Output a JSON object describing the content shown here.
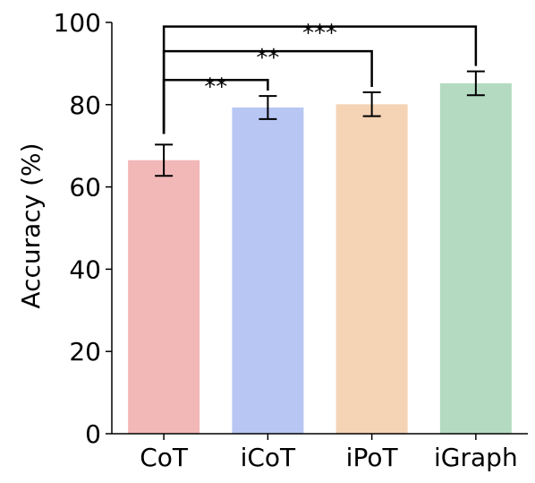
{
  "chart_data": {
    "type": "bar",
    "categories": [
      "CoT",
      "iCoT",
      "iPoT",
      "iGraph"
    ],
    "values": [
      66.5,
      79.3,
      80.1,
      85.2
    ],
    "errors": [
      3.8,
      2.8,
      2.9,
      2.9
    ],
    "colors": [
      "#f2b8b8",
      "#b8c6f4",
      "#f5d3b5",
      "#b4dbc2"
    ],
    "title": "",
    "xlabel": "",
    "ylabel": "Accuracy (%)",
    "ylim": [
      0,
      100
    ],
    "yticks": [
      0,
      20,
      40,
      60,
      80,
      100
    ],
    "grid": false,
    "significance": [
      {
        "from": "CoT",
        "to": "iCoT",
        "label": "**",
        "y": 86
      },
      {
        "from": "CoT",
        "to": "iPoT",
        "label": "**",
        "y": 93
      },
      {
        "from": "CoT",
        "to": "iGraph",
        "label": "***",
        "y": 99
      }
    ]
  }
}
